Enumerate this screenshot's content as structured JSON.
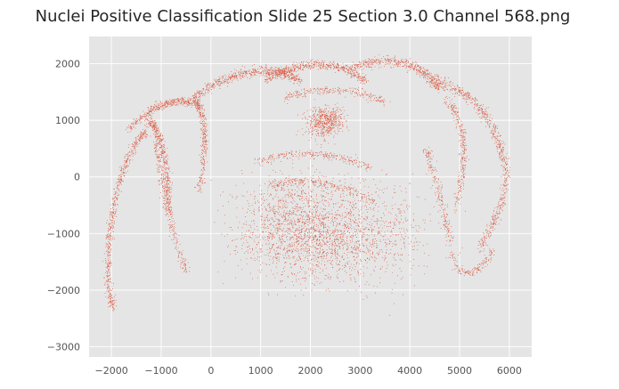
{
  "chart_data": {
    "type": "scatter",
    "title": "Nuclei Positive Classification Slide  25 Section 3.0 Channel 568.png",
    "xlabel": "",
    "ylabel": "",
    "xlim": [
      -2450,
      6450
    ],
    "ylim": [
      -3180,
      2480
    ],
    "xticks": [
      -2000,
      -1000,
      0,
      1000,
      2000,
      3000,
      4000,
      5000,
      6000
    ],
    "yticks": [
      -3000,
      -2000,
      -1000,
      0,
      1000,
      2000
    ],
    "xtick_labels": [
      "−2000",
      "−1000",
      "0",
      "1000",
      "2000",
      "3000",
      "4000",
      "5000",
      "6000"
    ],
    "ytick_labels": [
      "−3000",
      "−2000",
      "−1000",
      "0",
      "1000",
      "2000"
    ],
    "grid": true,
    "colors": {
      "background": "#e5e5e5",
      "grid": "#ffffff",
      "points": "#d9553d",
      "text": "#262626",
      "ticks": "#555555"
    },
    "series": [
      {
        "marker": "dot",
        "point_count": 9000
      }
    ]
  }
}
